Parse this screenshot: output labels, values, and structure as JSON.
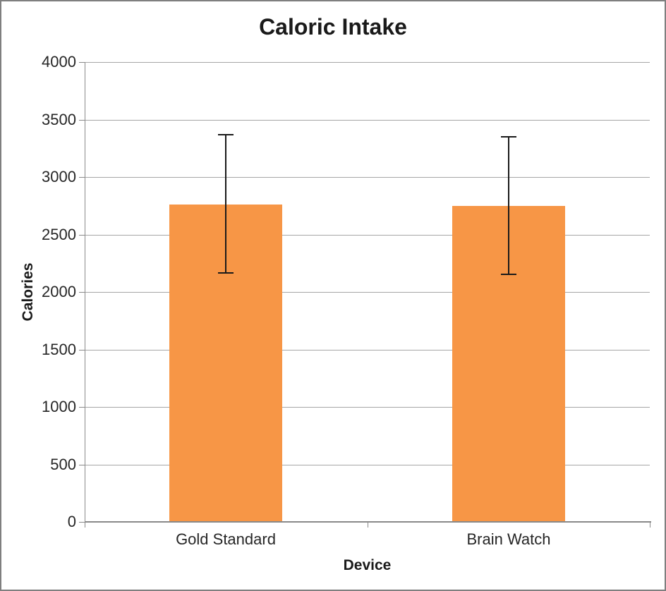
{
  "chart_data": {
    "type": "bar",
    "title": "Caloric Intake",
    "xlabel": "Device",
    "ylabel": "Calories",
    "categories": [
      "Gold Standard",
      "Brain Watch"
    ],
    "values": [
      2760,
      2750
    ],
    "error_bars": {
      "high": [
        3370,
        3350
      ],
      "low": [
        2165,
        2155
      ]
    },
    "ylim": [
      0,
      4000
    ],
    "ytick_interval": 500,
    "yticks": [
      0,
      500,
      1000,
      1500,
      2000,
      2500,
      3000,
      3500,
      4000
    ],
    "grid": true,
    "legend": false,
    "colors": {
      "bar_fill": "#F79646",
      "error_bar": "#1A1A1A",
      "gridline": "#A6A6A6",
      "axis_line": "#898989",
      "text": "#262626",
      "title_text": "#1A1A1A",
      "chart_border": "#7F7F7F",
      "background": "#FFFFFF"
    }
  }
}
